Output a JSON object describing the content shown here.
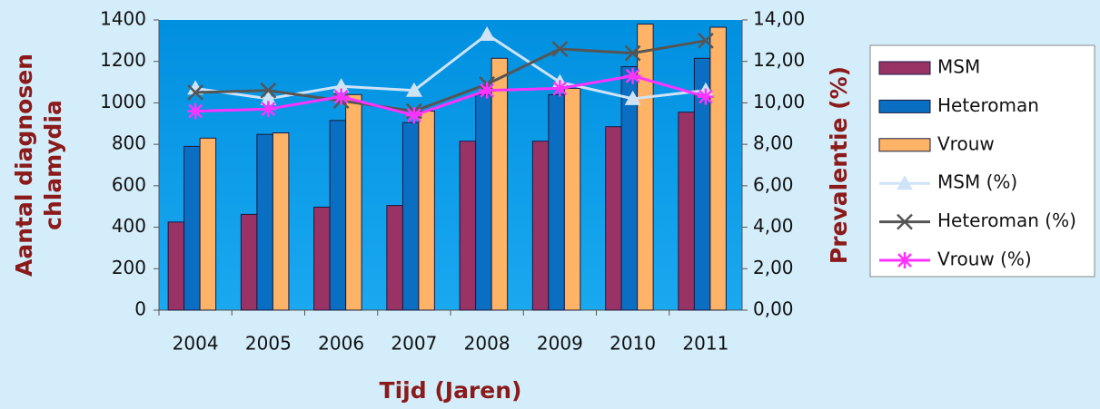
{
  "chart_data": {
    "type": "bar_line",
    "categories": [
      "2004",
      "2005",
      "2006",
      "2007",
      "2008",
      "2009",
      "2010",
      "2011"
    ],
    "series": [
      {
        "name": "MSM",
        "color": "#993366",
        "values": [
          425,
          462,
          497,
          505,
          815,
          815,
          885,
          955
        ]
      },
      {
        "name": "Heteroman",
        "color": "#0a6fc2",
        "values": [
          790,
          848,
          915,
          905,
          1040,
          1040,
          1175,
          1215
        ]
      },
      {
        "name": "Vrouw",
        "color": "#ffb366",
        "values": [
          830,
          855,
          1040,
          960,
          1215,
          1070,
          1380,
          1365
        ]
      },
      {
        "name": "MSM (%)",
        "color": "#cfe3f7",
        "axis": "y2",
        "marker": "triangle",
        "values": [
          10.7,
          10.2,
          10.8,
          10.6,
          13.3,
          11.0,
          10.2,
          10.6
        ]
      },
      {
        "name": "Heteroman (%)",
        "color": "#555555",
        "axis": "y2",
        "marker": "x",
        "values": [
          10.5,
          10.6,
          10.1,
          9.6,
          10.9,
          12.6,
          12.4,
          13.0
        ]
      },
      {
        "name": "Vrouw (%)",
        "color": "#ff33ff",
        "axis": "y2",
        "marker": "star",
        "values": [
          9.6,
          9.7,
          10.3,
          9.4,
          10.6,
          10.7,
          11.3,
          10.3
        ]
      }
    ],
    "ylim": [
      0,
      1400
    ],
    "yticks": [
      0,
      200,
      400,
      600,
      800,
      1000,
      1200,
      1400
    ],
    "y2lim": [
      0,
      14
    ],
    "y2ticks": [
      {
        "value": 0,
        "label": "0,00"
      },
      {
        "value": 2,
        "label": "2,00"
      },
      {
        "value": 4,
        "label": "4,00"
      },
      {
        "value": 6,
        "label": "6,00"
      },
      {
        "value": 8,
        "label": "8,00"
      },
      {
        "value": 10,
        "label": "10,00"
      },
      {
        "value": 12,
        "label": "12,00"
      },
      {
        "value": 14,
        "label": "14,00"
      }
    ],
    "ylabel": [
      "Aantal diagnosen",
      "chlamydia"
    ],
    "y2label": "Prevalentie (%)",
    "xlabel": "Tijd (Jaren)",
    "grid": false,
    "legend": "right"
  }
}
